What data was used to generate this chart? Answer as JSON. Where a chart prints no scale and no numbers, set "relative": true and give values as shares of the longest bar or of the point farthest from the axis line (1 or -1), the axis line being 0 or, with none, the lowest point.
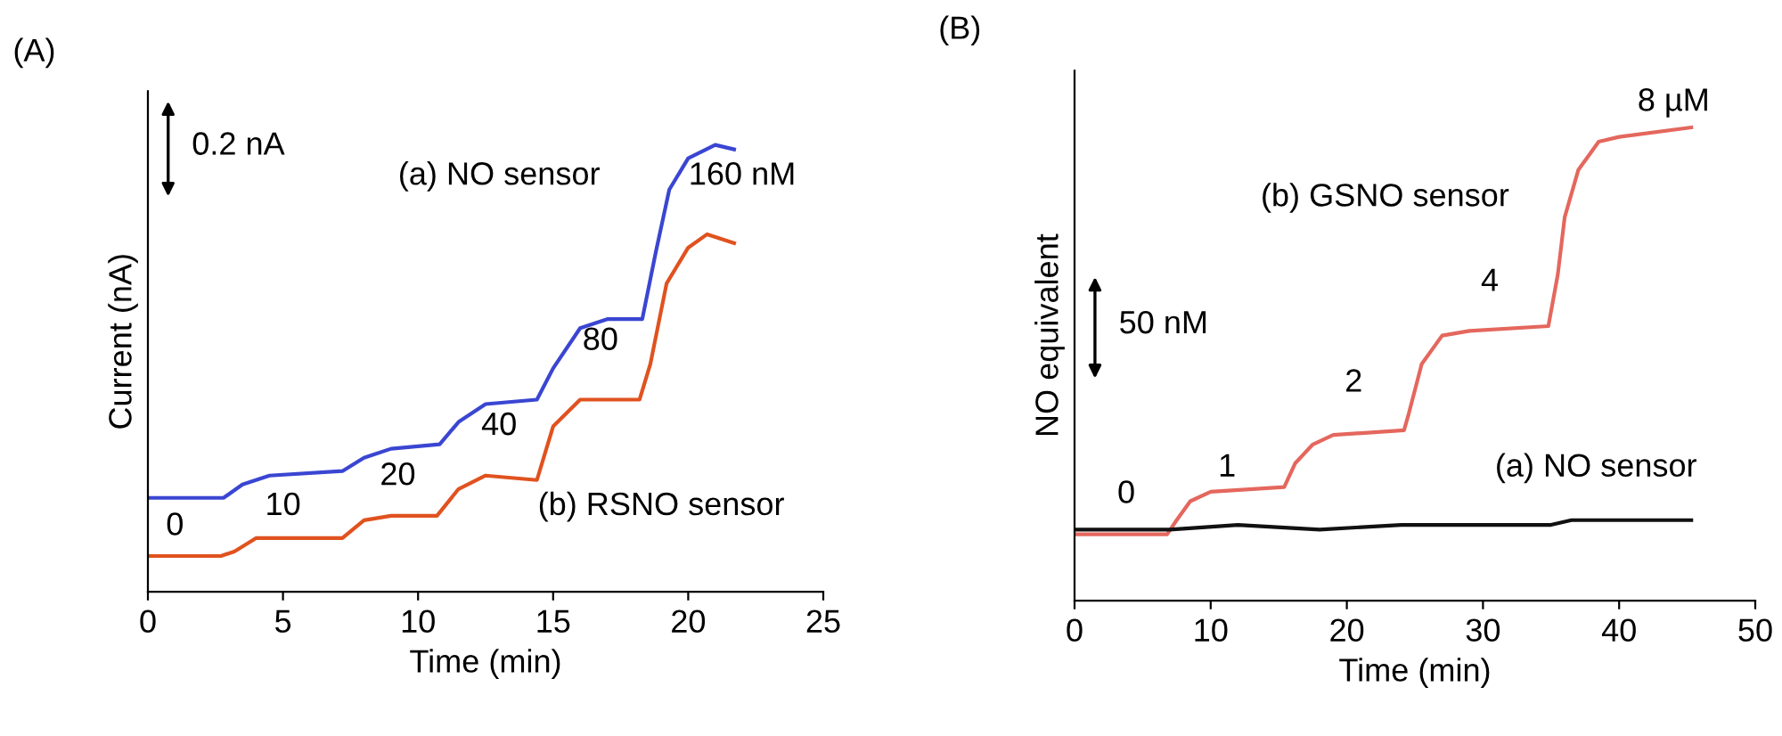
{
  "chart_data": [
    {
      "type": "line",
      "title": "(A)",
      "xlabel": "Time (min)",
      "ylabel": "Current (nA)",
      "relative": true,
      "tick_labels": "x",
      "xlim": [
        0,
        25
      ],
      "xticks": [
        0,
        5,
        10,
        15,
        20,
        25
      ],
      "grid": false,
      "legend": false,
      "marker": "none",
      "line_style": "solid",
      "series": [
        {
          "name": "(a) NO sensor",
          "color": "#3a46d2",
          "x": [
            0,
            2.8,
            3.5,
            4.5,
            7.2,
            8,
            9,
            10.8,
            11.5,
            12.5,
            14.4,
            15,
            16,
            17,
            18.3,
            18.8,
            19.3,
            20,
            21,
            21.7
          ],
          "values": [
            0.21,
            0.21,
            0.24,
            0.26,
            0.27,
            0.3,
            0.32,
            0.33,
            0.38,
            0.42,
            0.43,
            0.5,
            0.59,
            0.61,
            0.61,
            0.76,
            0.9,
            0.97,
            1,
            0.99
          ]
        },
        {
          "name": "(b) RSNO sensor",
          "color": "#e0521f",
          "x": [
            0,
            2.7,
            3.2,
            4,
            5,
            7.2,
            8,
            9,
            10.7,
            11.5,
            12.5,
            14.4,
            15,
            16,
            17,
            18.2,
            18.6,
            19.2,
            20,
            20.7,
            21.7
          ],
          "values": [
            0.08,
            0.08,
            0.09,
            0.12,
            0.12,
            0.12,
            0.16,
            0.17,
            0.17,
            0.23,
            0.26,
            0.25,
            0.37,
            0.43,
            0.43,
            0.43,
            0.51,
            0.69,
            0.77,
            0.8,
            0.78
          ]
        }
      ],
      "annotations": [
        "0.2 nA",
        "0",
        "10",
        "20",
        "40",
        "80",
        "160 nM"
      ]
    },
    {
      "type": "line",
      "title": "(B)",
      "xlabel": "Time (min)",
      "ylabel": "NO equivalent",
      "relative": true,
      "tick_labels": "x",
      "xlim": [
        0,
        50
      ],
      "xticks": [
        0,
        10,
        20,
        30,
        40,
        50
      ],
      "grid": false,
      "legend": false,
      "marker": "none",
      "line_style": "solid",
      "series": [
        {
          "name": "(b) GSNO sensor",
          "color": "#e4675d",
          "x": [
            0,
            6.8,
            7.5,
            8.5,
            10,
            15.4,
            16.2,
            17.5,
            19,
            24.2,
            24.5,
            25.5,
            27,
            29,
            34.8,
            35.5,
            36,
            37,
            38.5,
            40,
            45.3
          ],
          "values": [
            0.14,
            0.14,
            0.17,
            0.21,
            0.23,
            0.24,
            0.29,
            0.33,
            0.35,
            0.36,
            0.39,
            0.5,
            0.56,
            0.57,
            0.58,
            0.69,
            0.81,
            0.91,
            0.97,
            0.98,
            1
          ]
        },
        {
          "name": "(a) NO sensor",
          "color": "#111111",
          "x": [
            0,
            7,
            12,
            18,
            24,
            26,
            30,
            35,
            36.5,
            39,
            45.3
          ],
          "values": [
            0.15,
            0.15,
            0.16,
            0.15,
            0.16,
            0.16,
            0.16,
            0.16,
            0.17,
            0.17,
            0.17
          ]
        }
      ],
      "annotations": [
        "50 nM",
        "0",
        "1",
        "2",
        "4",
        "8 µM"
      ]
    }
  ]
}
